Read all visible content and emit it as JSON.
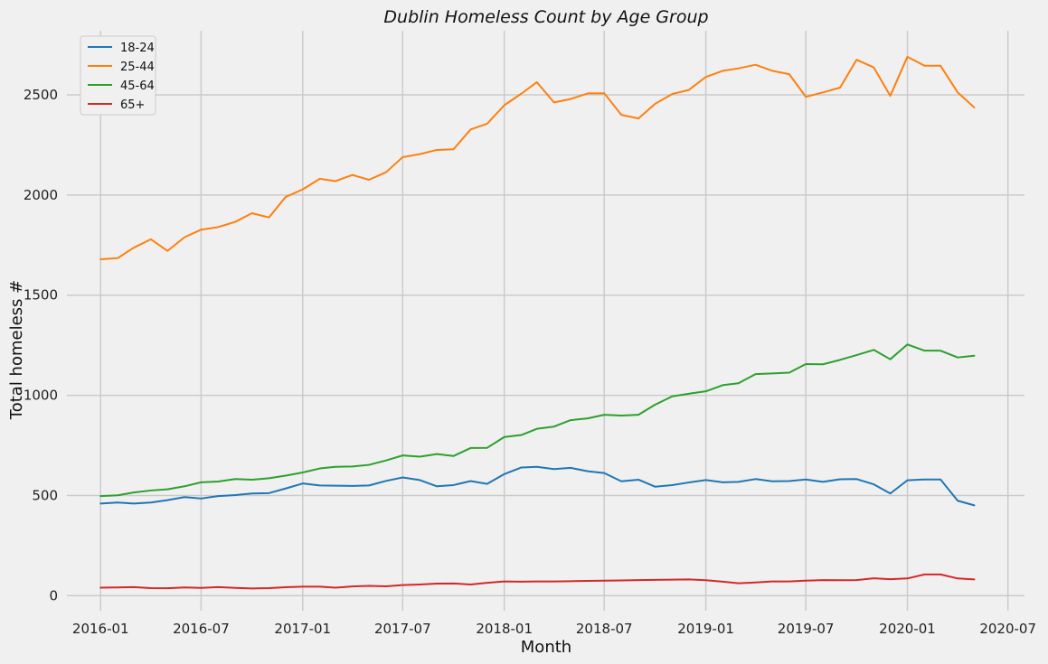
{
  "chart_data": {
    "type": "line",
    "title": "Dublin Homeless Count by Age Group",
    "xlabel": "Month",
    "ylabel": "Total homeless #",
    "xlim": [
      "2015-11-01",
      "2020-07-31"
    ],
    "ylim": [
      -75,
      2820
    ],
    "x_ticks": [
      "2016-01",
      "2016-07",
      "2017-01",
      "2017-07",
      "2018-01",
      "2018-07",
      "2019-01",
      "2019-07",
      "2020-01",
      "2020-07"
    ],
    "y_ticks": [
      0,
      500,
      1000,
      1500,
      2000,
      2500
    ],
    "grid": true,
    "legend_position": "top-left",
    "x": [
      "2016-01",
      "2016-02",
      "2016-03",
      "2016-04",
      "2016-05",
      "2016-06",
      "2016-07",
      "2016-08",
      "2016-09",
      "2016-10",
      "2016-11",
      "2016-12",
      "2017-01",
      "2017-02",
      "2017-03",
      "2017-04",
      "2017-05",
      "2017-06",
      "2017-07",
      "2017-08",
      "2017-09",
      "2017-10",
      "2017-11",
      "2017-12",
      "2018-01",
      "2018-02",
      "2018-03",
      "2018-04",
      "2018-05",
      "2018-06",
      "2018-07",
      "2018-08",
      "2018-09",
      "2018-10",
      "2018-11",
      "2018-12",
      "2019-01",
      "2019-02",
      "2019-03",
      "2019-04",
      "2019-05",
      "2019-06",
      "2019-07",
      "2019-08",
      "2019-09",
      "2019-10",
      "2019-11",
      "2019-12",
      "2020-01",
      "2020-02",
      "2020-03",
      "2020-04",
      "2020-05"
    ],
    "series": [
      {
        "name": "18-24",
        "color": "#1f77b4",
        "values": [
          460,
          465,
          460,
          465,
          477,
          492,
          485,
          497,
          502,
          510,
          512,
          535,
          560,
          550,
          549,
          548,
          550,
          573,
          590,
          577,
          546,
          552,
          572,
          558,
          607,
          640,
          643,
          632,
          638,
          621,
          612,
          571,
          579,
          544,
          552,
          565,
          577,
          566,
          568,
          582,
          571,
          572,
          580,
          568,
          581,
          582,
          556,
          510,
          576,
          580,
          580,
          474,
          451
        ]
      },
      {
        "name": "25-44",
        "color": "#ff7f0e",
        "values": [
          1679,
          1685,
          1737,
          1779,
          1721,
          1789,
          1827,
          1840,
          1866,
          1909,
          1888,
          1990,
          2028,
          2081,
          2069,
          2100,
          2076,
          2114,
          2189,
          2204,
          2225,
          2228,
          2327,
          2356,
          2448,
          2506,
          2563,
          2462,
          2479,
          2507,
          2508,
          2400,
          2382,
          2455,
          2504,
          2524,
          2589,
          2620,
          2632,
          2650,
          2620,
          2603,
          2490,
          2512,
          2536,
          2675,
          2637,
          2495,
          2690,
          2645,
          2645,
          2512,
          2437
        ]
      },
      {
        "name": "45-64",
        "color": "#2ca02c",
        "values": [
          497,
          501,
          515,
          525,
          531,
          546,
          566,
          570,
          582,
          579,
          586,
          599,
          615,
          635,
          643,
          645,
          653,
          675,
          700,
          694,
          707,
          697,
          737,
          738,
          792,
          802,
          833,
          844,
          876,
          885,
          903,
          899,
          903,
          953,
          995,
          1008,
          1020,
          1051,
          1060,
          1106,
          1109,
          1113,
          1156,
          1155,
          1177,
          1201,
          1227,
          1180,
          1254,
          1223,
          1223,
          1189,
          1198
        ]
      },
      {
        "name": "65+",
        "color": "#d62728",
        "values": [
          40,
          41,
          43,
          38,
          37,
          41,
          39,
          43,
          39,
          36,
          38,
          42,
          45,
          45,
          40,
          46,
          49,
          47,
          53,
          56,
          60,
          61,
          56,
          64,
          71,
          70,
          71,
          71,
          72,
          74,
          75,
          76,
          78,
          79,
          80,
          81,
          77,
          70,
          62,
          66,
          71,
          71,
          75,
          78,
          77,
          78,
          87,
          82,
          86,
          106,
          106,
          86,
          81
        ]
      }
    ]
  }
}
